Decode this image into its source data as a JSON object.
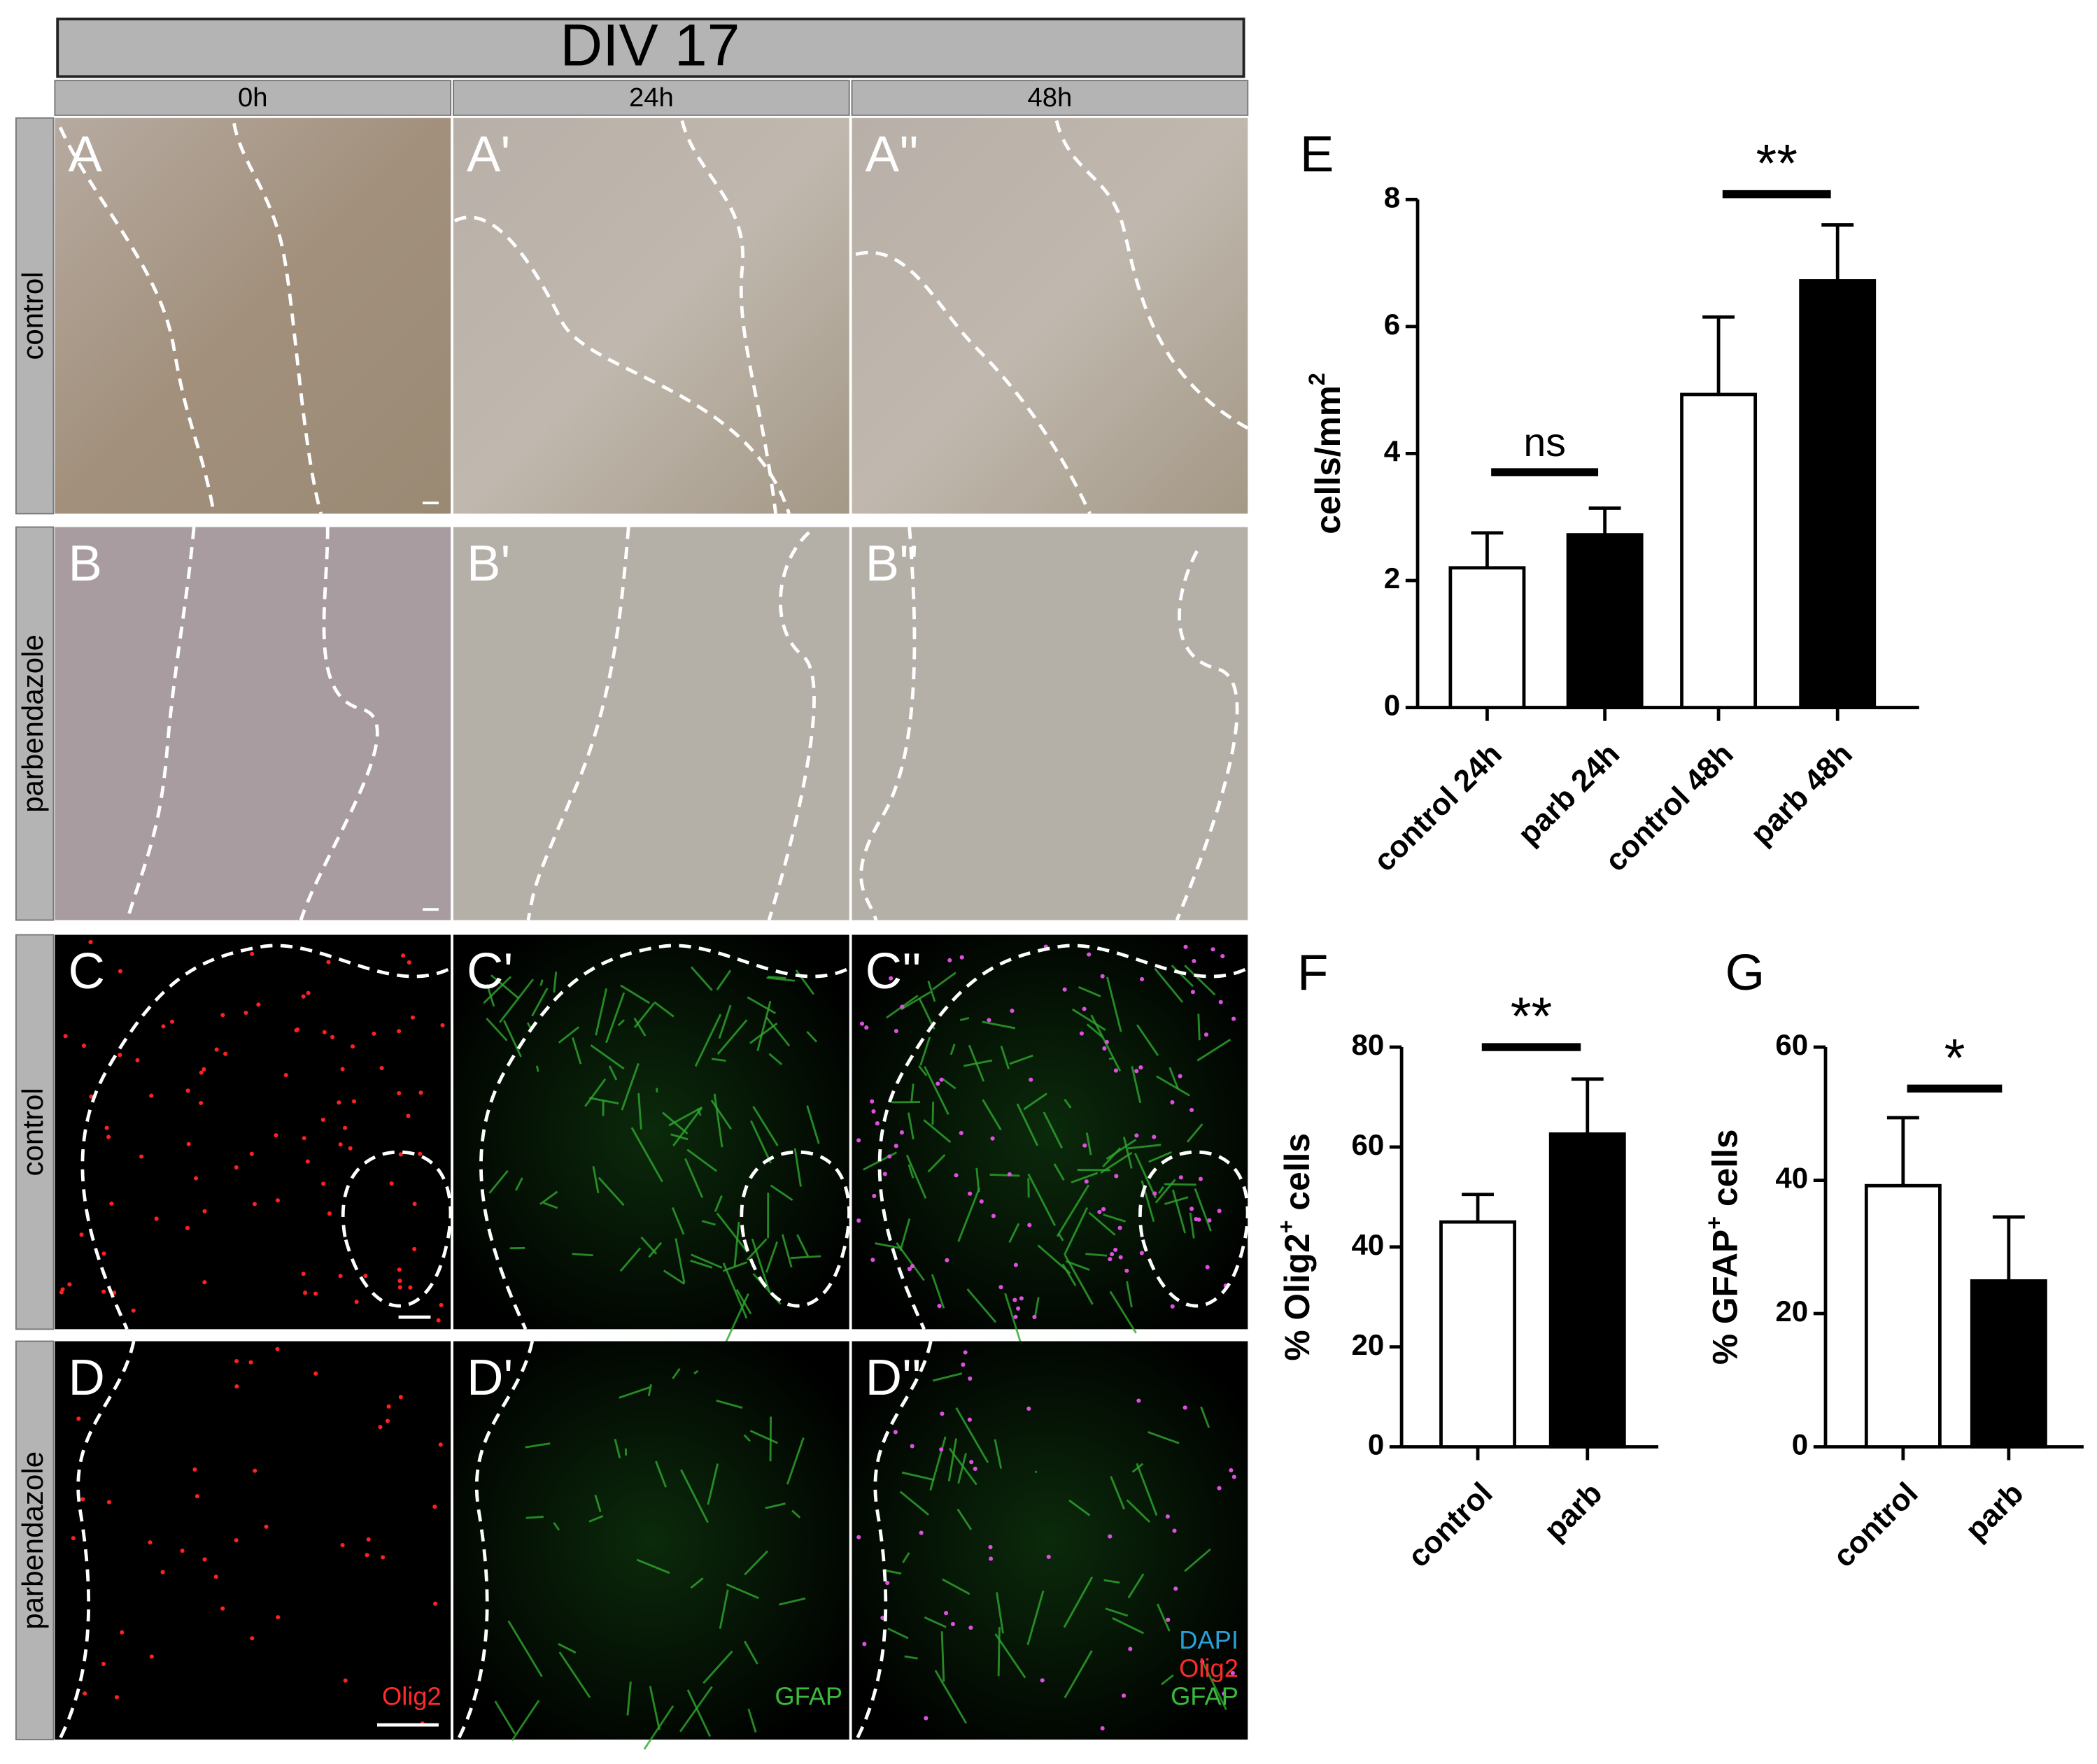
{
  "header": {
    "title": "DIV 17",
    "columns": [
      "0h",
      "24h",
      "48h"
    ]
  },
  "rows": [
    "control",
    "parbendazole",
    "control",
    "parbendazole"
  ],
  "panels": [
    "A",
    "A'",
    "A''",
    "B",
    "B'",
    "B''",
    "C",
    "C'",
    "C''",
    "D",
    "D'",
    "D''"
  ],
  "channel_labels": [
    [
      {
        "text": "Olig2",
        "color": "#ff2a2a"
      }
    ],
    [
      {
        "text": "GFAP",
        "color": "#3cb83c"
      }
    ],
    [
      {
        "text": "DAPI",
        "color": "#2a9fd8"
      },
      {
        "text": "Olig2",
        "color": "#ff2a2a"
      },
      {
        "text": "GFAP",
        "color": "#3cb83c"
      }
    ]
  ],
  "chart_data": [
    {
      "type": "bar",
      "label": "E",
      "ylabel": {
        "text": "cells/mm",
        "sup": "2"
      },
      "categories": [
        "control 24h",
        "parb 24h",
        "control 48h",
        "parb 48h"
      ],
      "values": [
        2.2,
        2.72,
        4.93,
        6.72
      ],
      "errors": [
        0.55,
        0.42,
        1.22,
        0.88
      ],
      "colors": [
        "#ffffff",
        "#000000",
        "#ffffff",
        "#000000"
      ],
      "ylim": [
        0,
        8
      ],
      "yticks": [
        0,
        2,
        4,
        6,
        8
      ],
      "annotations": [
        "ns",
        "**"
      ]
    },
    {
      "type": "bar",
      "label": "F",
      "ylabel": {
        "text": "% Olig2",
        "sup": "+",
        "rest": " cells"
      },
      "categories": [
        "control",
        "parb"
      ],
      "values": [
        45,
        62.6
      ],
      "errors": [
        5.5,
        11
      ],
      "colors": [
        "#ffffff",
        "#000000"
      ],
      "ylim": [
        0,
        80
      ],
      "yticks": [
        0,
        20,
        40,
        60,
        80
      ],
      "annotations": [
        "**"
      ]
    },
    {
      "type": "bar",
      "label": "G",
      "ylabel": {
        "text": "% GFAP",
        "sup": "+",
        "rest": " cells"
      },
      "categories": [
        "control",
        "parb"
      ],
      "values": [
        39.2,
        24.9
      ],
      "errors": [
        10.2,
        9.6
      ],
      "colors": [
        "#ffffff",
        "#000000"
      ],
      "ylim": [
        0,
        60
      ],
      "yticks": [
        0,
        20,
        40,
        60
      ],
      "annotations": [
        "*"
      ]
    }
  ]
}
